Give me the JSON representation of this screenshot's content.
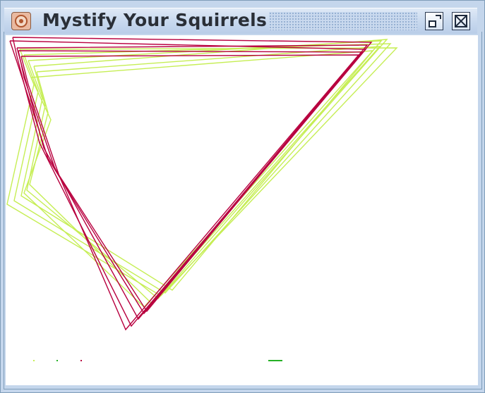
{
  "window": {
    "title": "Mystify Your Squirrels",
    "icon": "squirrel-app-icon",
    "buttons": {
      "restore": "restore-icon",
      "close": "close-icon"
    }
  },
  "colors": {
    "frame": "#c4d6ec",
    "title_text": "#2a2f37",
    "canvas_bg": "#ffffff",
    "polygon_a": "#b8003f",
    "polygon_b": "#c6ee55",
    "dot_green": "#26b026"
  }
}
